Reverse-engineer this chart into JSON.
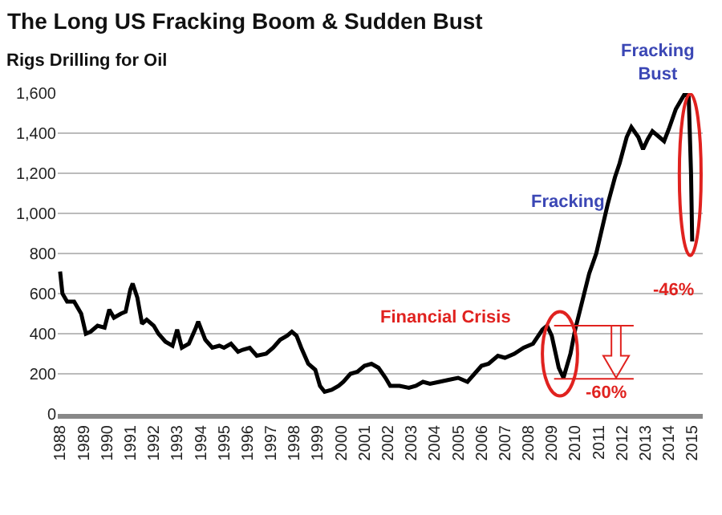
{
  "chart_data": {
    "type": "line",
    "title": "The Long US Fracking Boom & Sudden Bust",
    "ylabel": "Rigs Drilling for Oil",
    "x": [
      1988.0,
      1988.1,
      1988.3,
      1988.6,
      1988.9,
      1989.1,
      1989.3,
      1989.6,
      1989.9,
      1990.1,
      1990.3,
      1990.6,
      1990.8,
      1991.0,
      1991.1,
      1991.3,
      1991.5,
      1991.7,
      1992.0,
      1992.2,
      1992.5,
      1992.8,
      1993.0,
      1993.2,
      1993.5,
      1993.8,
      1993.9,
      1994.2,
      1994.5,
      1994.8,
      1995.0,
      1995.3,
      1995.6,
      1995.8,
      1996.1,
      1996.4,
      1996.8,
      1997.1,
      1997.4,
      1997.7,
      1997.9,
      1998.1,
      1998.3,
      1998.6,
      1998.9,
      1999.1,
      1999.3,
      1999.6,
      1999.9,
      2000.1,
      2000.4,
      2000.7,
      2001.0,
      2001.3,
      2001.6,
      2001.9,
      2002.1,
      2002.5,
      2002.9,
      2003.2,
      2003.5,
      2003.8,
      2004.2,
      2004.6,
      2005.0,
      2005.4,
      2005.7,
      2006.0,
      2006.3,
      2006.7,
      2007.0,
      2007.4,
      2007.8,
      2008.2,
      2008.6,
      2008.8,
      2009.0,
      2009.3,
      2009.5,
      2009.8,
      2010.0,
      2010.3,
      2010.6,
      2010.9,
      2011.1,
      2011.4,
      2011.7,
      2011.9,
      2012.2,
      2012.4,
      2012.7,
      2012.9,
      2013.1,
      2013.3,
      2013.6,
      2013.8,
      2014.0,
      2014.3,
      2014.5,
      2014.7,
      2014.85,
      2014.95,
      2015.0
    ],
    "series": [
      {
        "color": "#000000",
        "values": [
          710,
          600,
          560,
          560,
          500,
          400,
          410,
          440,
          430,
          520,
          480,
          500,
          510,
          620,
          650,
          580,
          450,
          470,
          440,
          400,
          360,
          340,
          420,
          330,
          350,
          430,
          460,
          370,
          330,
          340,
          330,
          350,
          310,
          320,
          330,
          290,
          300,
          330,
          370,
          390,
          410,
          390,
          330,
          250,
          220,
          140,
          110,
          120,
          140,
          160,
          200,
          210,
          240,
          250,
          230,
          180,
          140,
          140,
          130,
          140,
          160,
          150,
          160,
          170,
          180,
          160,
          200,
          240,
          250,
          290,
          280,
          300,
          330,
          350,
          420,
          440,
          390,
          230,
          180,
          300,
          420,
          560,
          700,
          800,
          900,
          1050,
          1180,
          1250,
          1380,
          1430,
          1380,
          1320,
          1370,
          1410,
          1380,
          1360,
          1420,
          1520,
          1560,
          1600,
          1580,
          1200,
          860
        ]
      }
    ],
    "xlim": [
      1987.9,
      2015.45
    ],
    "xticks": [
      1988,
      1989,
      1990,
      1991,
      1992,
      1993,
      1994,
      1995,
      1996,
      1997,
      1998,
      1999,
      2000,
      2001,
      2002,
      2003,
      2004,
      2005,
      2006,
      2007,
      2008,
      2009,
      2010,
      2011,
      2012,
      2013,
      2014,
      2015
    ],
    "ylim": [
      0,
      1600
    ],
    "yticks": [
      0,
      {
        "value": 200,
        "label": "200"
      },
      {
        "value": 400,
        "label": "400"
      },
      {
        "value": 600,
        "label": "600"
      },
      {
        "value": 800,
        "label": "800"
      },
      {
        "value": 1000,
        "label": "1,000"
      },
      {
        "value": 1200,
        "label": "1,200"
      },
      {
        "value": 1400,
        "label": "1,400"
      },
      {
        "value": 1600,
        "label": "1,600"
      }
    ],
    "grid": "y",
    "marker": "none",
    "line_style": "solid",
    "annotations": [
      "Fracking Bust",
      "Fracking",
      "-46%",
      "Financial Crisis",
      "-60%"
    ]
  }
}
